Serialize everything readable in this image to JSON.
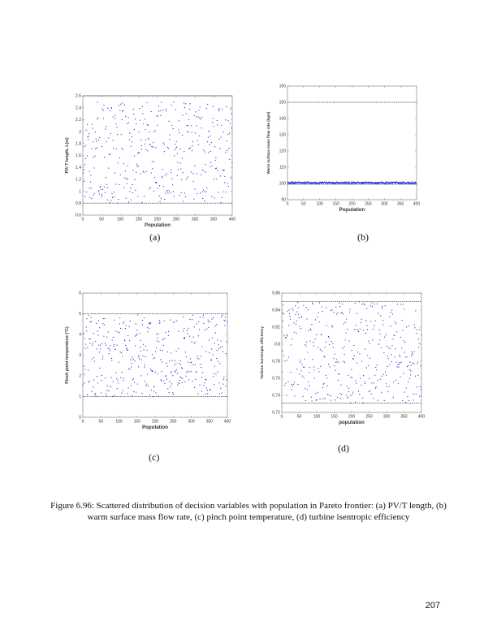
{
  "figure": {
    "caption": "Figure 6.96: Scattered distribution of decision variables with population in Pareto frontier: (a) PV/T length, (b) warm surface mass flow rate, (c) pinch point temperature, (d) turbine isentropic efficiency",
    "page_number": "207",
    "point_color": "#2b2bd6",
    "bound_color": "#444444"
  },
  "chart_data": [
    {
      "id": "a",
      "type": "scatter",
      "sub_label": "(a)",
      "title": "",
      "xlabel": "Population",
      "ylabel": "PV/ T length, L(m)",
      "xlim": [
        0,
        400
      ],
      "ylim": [
        0.6,
        2.6
      ],
      "xticks": [
        0,
        50,
        100,
        150,
        200,
        250,
        300,
        350,
        400
      ],
      "yticks": [
        0.6,
        0.8,
        1,
        1.2,
        1.4,
        1.6,
        1.8,
        2,
        2.2,
        2.4,
        2.6
      ],
      "ytick_labels": [
        "0.6",
        "0.8",
        "1",
        "1.2",
        "1.4",
        "1.6",
        "1.8",
        "2",
        "2.2",
        "2.4",
        "2.6"
      ],
      "bounds": {
        "upper": 2.6,
        "lower": 0.8
      },
      "n_points": 400,
      "distribution": "uniform random between bounds",
      "value_range": [
        0.8,
        2.5
      ],
      "grid": false,
      "legend": null
    },
    {
      "id": "b",
      "type": "scatter",
      "sub_label": "(b)",
      "title": "",
      "xlabel": "Population",
      "ylabel": "Warm surface mass flow rate (kg/s)",
      "xlim": [
        0,
        400
      ],
      "ylim": [
        90,
        160
      ],
      "xticks": [
        0,
        50,
        100,
        150,
        200,
        250,
        300,
        350,
        400
      ],
      "yticks": [
        90,
        100,
        110,
        120,
        130,
        140,
        150,
        160
      ],
      "ytick_labels": [
        "90",
        "100",
        "110",
        "120",
        "130",
        "140",
        "150",
        "160"
      ],
      "bounds": {
        "upper": 150,
        "lower": 99.5
      },
      "n_points": 400,
      "distribution": "clustered near lower bound",
      "value_range": [
        99.8,
        101.0
      ],
      "grid": false,
      "legend": null
    },
    {
      "id": "c",
      "type": "scatter",
      "sub_label": "(c)",
      "title": "",
      "xlabel": "Population",
      "ylabel": "Pinch point temperature (°C)",
      "xlim": [
        0,
        400
      ],
      "ylim": [
        0,
        6
      ],
      "xticks": [
        0,
        50,
        100,
        150,
        200,
        250,
        300,
        350,
        400
      ],
      "yticks": [
        0,
        1,
        2,
        3,
        4,
        5,
        6
      ],
      "ytick_labels": [
        "0",
        "1",
        "2",
        "3",
        "4",
        "5",
        "6"
      ],
      "bounds": {
        "upper": 5,
        "lower": 1
      },
      "n_points": 400,
      "distribution": "uniform random between bounds",
      "value_range": [
        1.0,
        4.95
      ],
      "grid": false,
      "legend": null
    },
    {
      "id": "d",
      "type": "scatter",
      "sub_label": "(d)",
      "title": "",
      "xlabel": "population",
      "ylabel": "Turbine isentropic efficiency",
      "xlim": [
        0,
        400
      ],
      "ylim": [
        0.72,
        0.86
      ],
      "xticks": [
        0,
        50,
        100,
        150,
        200,
        250,
        300,
        350,
        400
      ],
      "yticks": [
        0.72,
        0.74,
        0.76,
        0.78,
        0.8,
        0.82,
        0.84,
        0.86
      ],
      "ytick_labels": [
        "0.72",
        "0.74",
        "0.76",
        "0.78",
        "0.8",
        "0.82",
        "0.84",
        "0.86"
      ],
      "bounds": {
        "upper": 0.85,
        "lower": 0.731
      },
      "n_points": 400,
      "distribution": "uniform random between bounds",
      "value_range": [
        0.731,
        0.85
      ],
      "grid": false,
      "legend": null
    }
  ]
}
